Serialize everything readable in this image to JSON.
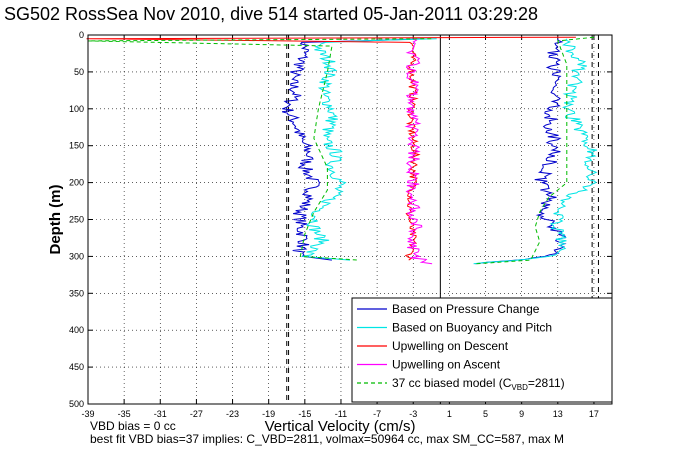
{
  "chart_data": {
    "type": "line",
    "title": "SG502 RossSea Nov 2010, dive 514 started 05-Jan-2011 03:29:28",
    "xlabel": "Vertical Velocity (cm/s)",
    "ylabel": "Depth (m)",
    "xlim": [
      -39,
      19
    ],
    "ylim": [
      500,
      0
    ],
    "xticks": [
      "-39",
      "-35",
      "-31",
      "-27",
      "-23",
      "-19",
      "-15",
      "-11",
      "-7",
      "-3",
      "1",
      "5",
      "9",
      "13",
      "17"
    ],
    "yticks": [
      "0",
      "50",
      "100",
      "150",
      "200",
      "250",
      "300",
      "350",
      "400",
      "450",
      "500"
    ],
    "grid": true,
    "legend_position": "bottom-right",
    "vertical_lines": {
      "solid": [
        0
      ],
      "dashed": [
        -17,
        17.5,
        -16.8,
        16.8
      ]
    },
    "series": [
      {
        "name": "Based on Pressure Change",
        "color": "#0000cc",
        "style": "solid",
        "descent": [
          [
            -1,
            5
          ],
          [
            -15,
            10
          ],
          [
            -15,
            20
          ],
          [
            -15.5,
            40
          ],
          [
            -16.5,
            60
          ],
          [
            -16,
            80
          ],
          [
            -17,
            100
          ],
          [
            -16,
            120
          ],
          [
            -15.5,
            140
          ],
          [
            -14.5,
            160
          ],
          [
            -15,
            180
          ],
          [
            -14,
            200
          ],
          [
            -14.5,
            220
          ],
          [
            -15.5,
            240
          ],
          [
            -15.5,
            260
          ],
          [
            -15,
            280
          ],
          [
            -16,
            300
          ],
          [
            -12,
            305
          ]
        ],
        "ascent": [
          [
            4,
            310
          ],
          [
            12,
            300
          ],
          [
            13.5,
            285
          ],
          [
            12.5,
            260
          ],
          [
            11,
            240
          ],
          [
            12.5,
            220
          ],
          [
            11,
            200
          ],
          [
            12,
            180
          ],
          [
            12.5,
            160
          ],
          [
            12.5,
            140
          ],
          [
            12,
            120
          ],
          [
            12.5,
            100
          ],
          [
            12.5,
            80
          ],
          [
            12.5,
            60
          ],
          [
            12.5,
            40
          ],
          [
            12.5,
            20
          ],
          [
            13,
            5
          ]
        ]
      },
      {
        "name": "Based on Buoyancy and Pitch",
        "color": "#00e5e5",
        "style": "solid",
        "descent": [
          [
            -1,
            5
          ],
          [
            -13,
            10
          ],
          [
            -13.5,
            20
          ],
          [
            -12,
            40
          ],
          [
            -12.5,
            60
          ],
          [
            -13,
            80
          ],
          [
            -12,
            100
          ],
          [
            -12,
            120
          ],
          [
            -13,
            140
          ],
          [
            -11.5,
            160
          ],
          [
            -12,
            180
          ],
          [
            -11,
            200
          ],
          [
            -12,
            220
          ],
          [
            -13.5,
            240
          ],
          [
            -14,
            260
          ],
          [
            -13,
            280
          ],
          [
            -15,
            300
          ],
          [
            -10,
            305
          ]
        ],
        "ascent": [
          [
            4,
            310
          ],
          [
            12,
            300
          ],
          [
            13.5,
            285
          ],
          [
            13,
            260
          ],
          [
            13,
            240
          ],
          [
            14,
            220
          ],
          [
            17,
            200
          ],
          [
            16.5,
            180
          ],
          [
            17,
            160
          ],
          [
            16,
            140
          ],
          [
            15,
            120
          ],
          [
            14,
            100
          ],
          [
            14.5,
            80
          ],
          [
            15,
            60
          ],
          [
            15.5,
            40
          ],
          [
            14.5,
            20
          ],
          [
            14,
            5
          ]
        ]
      },
      {
        "name": "Upwelling on Descent",
        "color": "#ff0000",
        "style": "solid",
        "descent": [
          [
            15,
            3
          ],
          [
            -39,
            5
          ],
          [
            -3,
            10
          ],
          [
            -3.2,
            40
          ],
          [
            -3,
            80
          ],
          [
            -3.3,
            120
          ],
          [
            -2.8,
            160
          ],
          [
            -3,
            200
          ],
          [
            -3.5,
            240
          ],
          [
            -3,
            280
          ],
          [
            -3.5,
            305
          ]
        ],
        "ascent": []
      },
      {
        "name": "Upwelling on Ascent",
        "color": "#ff00ff",
        "style": "solid",
        "descent": [],
        "ascent": [
          [
            -1,
            310
          ],
          [
            -3,
            300
          ],
          [
            -3,
            280
          ],
          [
            -2.5,
            260
          ],
          [
            -3,
            240
          ],
          [
            -3,
            220
          ],
          [
            -3,
            200
          ],
          [
            -3,
            180
          ],
          [
            -3,
            160
          ],
          [
            -3,
            140
          ],
          [
            -3,
            120
          ],
          [
            -3,
            100
          ],
          [
            -3,
            80
          ],
          [
            -3,
            60
          ],
          [
            -3,
            40
          ],
          [
            -3,
            20
          ],
          [
            -3,
            5
          ]
        ]
      },
      {
        "name": "37 cc biased model (C_VBD=2811)",
        "color": "#00bb00",
        "style": "dashed",
        "descent": [
          [
            -1,
            5
          ],
          [
            -39,
            8
          ],
          [
            -12,
            15
          ],
          [
            -12.5,
            50
          ],
          [
            -13.5,
            100
          ],
          [
            -14,
            140
          ],
          [
            -12.5,
            180
          ],
          [
            -12.5,
            210
          ],
          [
            -14,
            240
          ],
          [
            -15,
            270
          ],
          [
            -15.5,
            300
          ],
          [
            -9,
            305
          ]
        ],
        "ascent": [
          [
            4,
            310
          ],
          [
            10,
            305
          ],
          [
            11,
            280
          ],
          [
            10.5,
            260
          ],
          [
            11,
            240
          ],
          [
            12,
            220
          ],
          [
            14,
            200
          ],
          [
            14,
            160
          ],
          [
            14,
            120
          ],
          [
            14,
            80
          ],
          [
            14,
            40
          ],
          [
            13,
            8
          ],
          [
            17,
            3
          ]
        ]
      }
    ],
    "legend": {
      "labels": [
        "Based on Pressure Change",
        "Based on Buoyancy and Pitch",
        "Upwelling on Descent",
        "Upwelling on Ascent",
        "37 cc biased model (C"
      ],
      "model_subscript": "VBD",
      "model_suffix": "=2811)"
    }
  },
  "footer": {
    "line1": "VBD bias = 0 cc",
    "line2": "best fit VBD bias=37 implies: C_VBD=2811, volmax=50964 cc, max SM_CC=587, max M"
  }
}
